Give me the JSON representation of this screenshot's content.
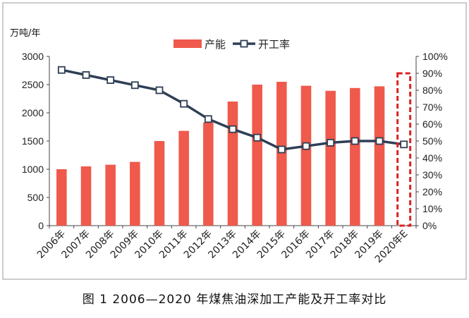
{
  "caption": "图 1 2006—2020 年煤焦油深加工产能及开工率对比",
  "chart_data": {
    "type": "bar+line",
    "y_unit": "万吨/年",
    "categories": [
      "2006年",
      "2007年",
      "2008年",
      "2009年",
      "2010年",
      "2011年",
      "2012年",
      "2013年",
      "2014年",
      "2015年",
      "2016年",
      "2017年",
      "2018年",
      "2019年",
      "2020年E"
    ],
    "series": [
      {
        "name": "产能",
        "type": "bar",
        "axis": "left",
        "color": "#ef5a4c",
        "values": [
          1000,
          1050,
          1080,
          1130,
          1500,
          1680,
          1830,
          2200,
          2500,
          2550,
          2480,
          2390,
          2440,
          2470,
          0
        ]
      },
      {
        "name": "开工率",
        "type": "line",
        "axis": "right",
        "color": "#2e3f56",
        "values": [
          92,
          89,
          86,
          83,
          80,
          72,
          63,
          57,
          52,
          45,
          47,
          49,
          50,
          50,
          48
        ]
      }
    ],
    "y_left": {
      "min": 0,
      "max": 3000,
      "step": 500,
      "ticks": [
        "0",
        "500",
        "1000",
        "1500",
        "2000",
        "2500",
        "3000"
      ]
    },
    "y_right": {
      "min": 0,
      "max": 100,
      "step": 10,
      "ticks": [
        "0%",
        "10%",
        "20%",
        "30%",
        "40%",
        "50%",
        "60%",
        "70%",
        "80%",
        "90%",
        "100%"
      ]
    },
    "legend_position": "top-center",
    "highlight": {
      "category": "2020年E",
      "style": "dashed-box",
      "color": "#e02020"
    },
    "grid": false
  }
}
